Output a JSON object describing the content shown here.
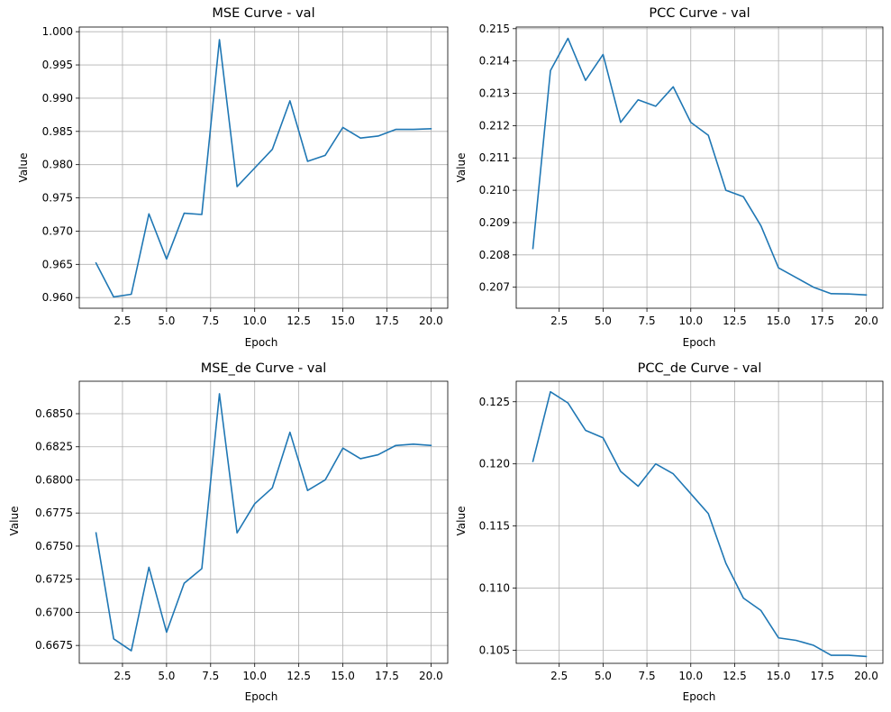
{
  "chart_data": [
    {
      "type": "line",
      "title": "MSE Curve - val",
      "xlabel": "Epoch",
      "ylabel": "Value",
      "x": [
        1,
        2,
        3,
        4,
        5,
        6,
        7,
        8,
        9,
        10,
        11,
        12,
        13,
        14,
        15,
        16,
        17,
        18,
        19,
        20
      ],
      "y": [
        0.9652,
        0.9601,
        0.9605,
        0.9726,
        0.9658,
        0.9727,
        0.9725,
        0.9988,
        0.9767,
        0.9795,
        0.9823,
        0.9896,
        0.9805,
        0.9814,
        0.9856,
        0.984,
        0.9843,
        0.9853,
        0.9853,
        0.9854
      ],
      "xlim": [
        0.05,
        20.95
      ],
      "ylim": [
        0.9584,
        1.0007
      ],
      "xticks": [
        2.5,
        5,
        7.5,
        10,
        12.5,
        15,
        17.5,
        20
      ],
      "xtick_labels": [
        "2.5",
        "5.0",
        "7.5",
        "10.0",
        "12.5",
        "15.0",
        "17.5",
        "20.0"
      ],
      "yticks": [
        0.96,
        0.965,
        0.97,
        0.975,
        0.98,
        0.985,
        0.99,
        0.995,
        1.0
      ],
      "ytick_labels": [
        "0.960",
        "0.965",
        "0.970",
        "0.975",
        "0.980",
        "0.985",
        "0.990",
        "0.995",
        "1.000"
      ],
      "grid": true
    },
    {
      "type": "line",
      "title": "PCC Curve - val",
      "xlabel": "Epoch",
      "ylabel": "Value",
      "x": [
        1,
        2,
        3,
        4,
        5,
        6,
        7,
        8,
        9,
        10,
        11,
        12,
        13,
        14,
        15,
        16,
        17,
        18,
        19,
        20
      ],
      "y": [
        0.2082,
        0.2137,
        0.2147,
        0.2134,
        0.2142,
        0.2121,
        0.2128,
        0.2126,
        0.2132,
        0.2121,
        0.2117,
        0.21,
        0.2098,
        0.2089,
        0.2076,
        0.2073,
        0.207,
        0.2068,
        0.20679,
        0.20676
      ],
      "xlim": [
        0.05,
        20.95
      ],
      "ylim": [
        0.20635,
        0.21505
      ],
      "xticks": [
        2.5,
        5,
        7.5,
        10,
        12.5,
        15,
        17.5,
        20
      ],
      "xtick_labels": [
        "2.5",
        "5.0",
        "7.5",
        "10.0",
        "12.5",
        "15.0",
        "17.5",
        "20.0"
      ],
      "yticks": [
        0.207,
        0.208,
        0.209,
        0.21,
        0.211,
        0.212,
        0.213,
        0.214,
        0.215
      ],
      "ytick_labels": [
        "0.207",
        "0.208",
        "0.209",
        "0.210",
        "0.211",
        "0.212",
        "0.213",
        "0.214",
        "0.215"
      ],
      "grid": true
    },
    {
      "type": "line",
      "title": "MSE_de Curve - val",
      "xlabel": "Epoch",
      "ylabel": "Value",
      "x": [
        1,
        2,
        3,
        4,
        5,
        6,
        7,
        8,
        9,
        10,
        11,
        12,
        13,
        14,
        15,
        16,
        17,
        18,
        19,
        20
      ],
      "y": [
        0.676,
        0.668,
        0.6671,
        0.6734,
        0.6685,
        0.6722,
        0.6733,
        0.6865,
        0.676,
        0.6782,
        0.6794,
        0.6836,
        0.6792,
        0.68,
        0.6824,
        0.6816,
        0.6819,
        0.6826,
        0.6827,
        0.6826
      ],
      "xlim": [
        0.05,
        20.95
      ],
      "ylim": [
        0.66615,
        0.68745
      ],
      "xticks": [
        2.5,
        5,
        7.5,
        10,
        12.5,
        15,
        17.5,
        20
      ],
      "xtick_labels": [
        "2.5",
        "5.0",
        "7.5",
        "10.0",
        "12.5",
        "15.0",
        "17.5",
        "20.0"
      ],
      "yticks": [
        0.6675,
        0.67,
        0.6725,
        0.675,
        0.6775,
        0.68,
        0.6825,
        0.685
      ],
      "ytick_labels": [
        "0.6675",
        "0.6700",
        "0.6725",
        "0.6750",
        "0.6775",
        "0.6800",
        "0.6825",
        "0.6850"
      ],
      "grid": true
    },
    {
      "type": "line",
      "title": "PCC_de Curve - val",
      "xlabel": "Epoch",
      "ylabel": "Value",
      "x": [
        1,
        2,
        3,
        4,
        5,
        6,
        7,
        8,
        9,
        10,
        11,
        12,
        13,
        14,
        15,
        16,
        17,
        18,
        19,
        20
      ],
      "y": [
        0.1202,
        0.1258,
        0.1249,
        0.1227,
        0.1221,
        0.1194,
        0.1182,
        0.12,
        0.1192,
        0.1176,
        0.116,
        0.112,
        0.1092,
        0.1082,
        0.106,
        0.1058,
        0.1054,
        0.1046,
        0.1046,
        0.1045
      ],
      "xlim": [
        0.05,
        20.95
      ],
      "ylim": [
        0.10395,
        0.12665
      ],
      "xticks": [
        2.5,
        5,
        7.5,
        10,
        12.5,
        15,
        17.5,
        20
      ],
      "xtick_labels": [
        "2.5",
        "5.0",
        "7.5",
        "10.0",
        "12.5",
        "15.0",
        "17.5",
        "20.0"
      ],
      "yticks": [
        0.105,
        0.11,
        0.115,
        0.12,
        0.125
      ],
      "ytick_labels": [
        "0.105",
        "0.110",
        "0.115",
        "0.120",
        "0.125"
      ],
      "grid": true
    }
  ],
  "style": {
    "line_color": "#1f77b4",
    "grid_color": "#b0b0b0"
  }
}
